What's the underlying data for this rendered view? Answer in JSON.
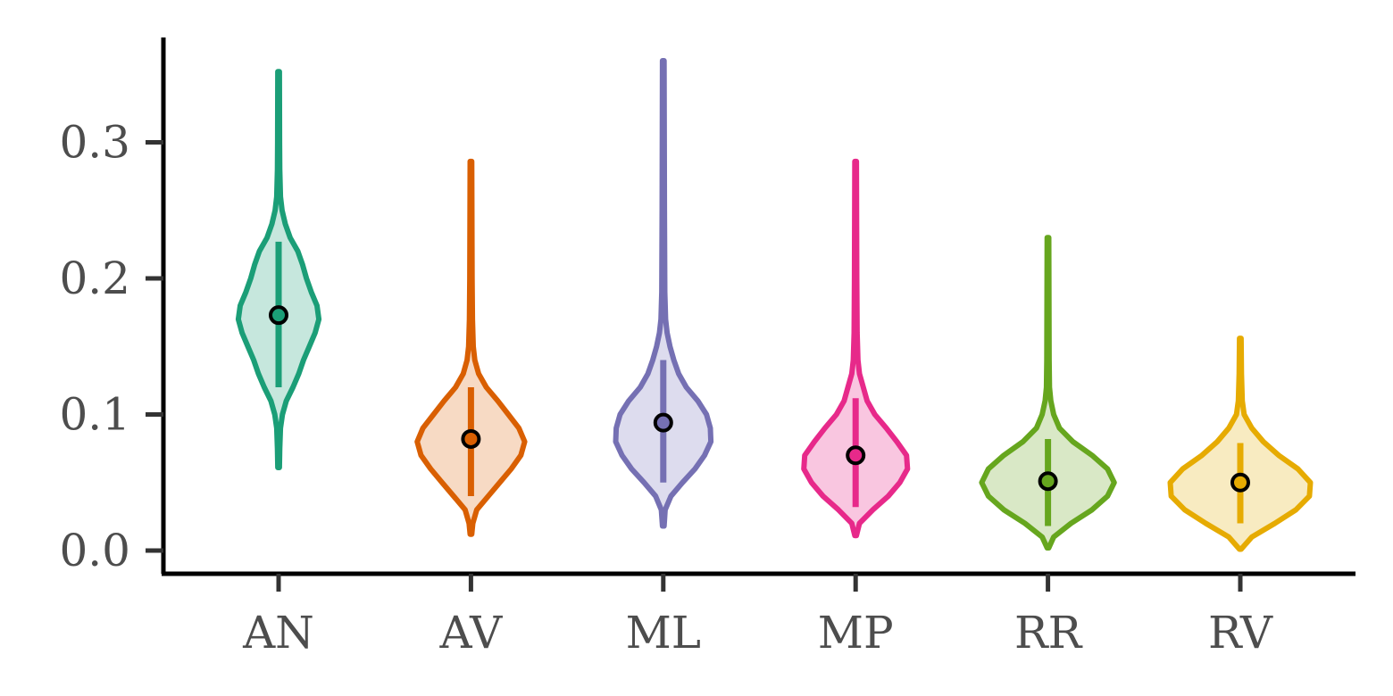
{
  "chart_data": {
    "type": "violin",
    "title": "",
    "xlabel": "",
    "ylabel": "",
    "ylim": [
      -0.015,
      0.375
    ],
    "yticks": [
      0.0,
      0.1,
      0.2,
      0.3
    ],
    "ytick_labels": [
      "0.0",
      "0.1",
      "0.2",
      "0.3"
    ],
    "categories": [
      "AN",
      "AV",
      "ML",
      "MP",
      "RR",
      "RV"
    ],
    "grid": false,
    "legend": "none",
    "series": [
      {
        "category": "AN",
        "color": "#1b9e77",
        "fill": "#c6e7dd",
        "min": 0.061,
        "max": 0.352,
        "median": 0.173,
        "q1": 0.12,
        "q3": 0.227,
        "profile": [
          [
            0.061,
            0.004
          ],
          [
            0.075,
            0.006
          ],
          [
            0.09,
            0.01
          ],
          [
            0.1,
            0.02
          ],
          [
            0.11,
            0.04
          ],
          [
            0.12,
            0.075
          ],
          [
            0.13,
            0.105
          ],
          [
            0.14,
            0.13
          ],
          [
            0.15,
            0.16
          ],
          [
            0.16,
            0.19
          ],
          [
            0.17,
            0.21
          ],
          [
            0.18,
            0.2
          ],
          [
            0.19,
            0.17
          ],
          [
            0.2,
            0.145
          ],
          [
            0.21,
            0.125
          ],
          [
            0.22,
            0.1
          ],
          [
            0.23,
            0.06
          ],
          [
            0.24,
            0.035
          ],
          [
            0.25,
            0.018
          ],
          [
            0.26,
            0.01
          ],
          [
            0.28,
            0.006
          ],
          [
            0.3,
            0.005
          ],
          [
            0.352,
            0.004
          ]
        ]
      },
      {
        "category": "AV",
        "color": "#d95f02",
        "fill": "#f7dac4",
        "min": 0.012,
        "max": 0.286,
        "median": 0.082,
        "q1": 0.04,
        "q3": 0.12,
        "profile": [
          [
            0.012,
            0.004
          ],
          [
            0.02,
            0.01
          ],
          [
            0.03,
            0.03
          ],
          [
            0.04,
            0.09
          ],
          [
            0.05,
            0.15
          ],
          [
            0.06,
            0.21
          ],
          [
            0.07,
            0.26
          ],
          [
            0.08,
            0.28
          ],
          [
            0.09,
            0.25
          ],
          [
            0.1,
            0.195
          ],
          [
            0.11,
            0.14
          ],
          [
            0.12,
            0.08
          ],
          [
            0.13,
            0.04
          ],
          [
            0.14,
            0.02
          ],
          [
            0.15,
            0.012
          ],
          [
            0.17,
            0.008
          ],
          [
            0.2,
            0.006
          ],
          [
            0.286,
            0.004
          ]
        ]
      },
      {
        "category": "ML",
        "color": "#7570b3",
        "fill": "#dddcee",
        "min": 0.018,
        "max": 0.36,
        "median": 0.094,
        "q1": 0.05,
        "q3": 0.14,
        "profile": [
          [
            0.018,
            0.004
          ],
          [
            0.03,
            0.01
          ],
          [
            0.04,
            0.04
          ],
          [
            0.05,
            0.1
          ],
          [
            0.06,
            0.165
          ],
          [
            0.07,
            0.215
          ],
          [
            0.08,
            0.248
          ],
          [
            0.09,
            0.245
          ],
          [
            0.1,
            0.225
          ],
          [
            0.11,
            0.18
          ],
          [
            0.12,
            0.12
          ],
          [
            0.13,
            0.08
          ],
          [
            0.14,
            0.055
          ],
          [
            0.15,
            0.035
          ],
          [
            0.16,
            0.02
          ],
          [
            0.17,
            0.012
          ],
          [
            0.19,
            0.008
          ],
          [
            0.25,
            0.006
          ],
          [
            0.36,
            0.004
          ]
        ]
      },
      {
        "category": "MP",
        "color": "#e7298a",
        "fill": "#f9c6e0",
        "min": 0.011,
        "max": 0.286,
        "median": 0.07,
        "q1": 0.032,
        "q3": 0.112,
        "profile": [
          [
            0.011,
            0.004
          ],
          [
            0.02,
            0.02
          ],
          [
            0.03,
            0.09
          ],
          [
            0.04,
            0.17
          ],
          [
            0.05,
            0.23
          ],
          [
            0.06,
            0.27
          ],
          [
            0.07,
            0.265
          ],
          [
            0.08,
            0.215
          ],
          [
            0.09,
            0.16
          ],
          [
            0.1,
            0.1
          ],
          [
            0.11,
            0.06
          ],
          [
            0.12,
            0.04
          ],
          [
            0.13,
            0.02
          ],
          [
            0.14,
            0.012
          ],
          [
            0.16,
            0.008
          ],
          [
            0.2,
            0.006
          ],
          [
            0.286,
            0.004
          ]
        ]
      },
      {
        "category": "RR",
        "color": "#66a61e",
        "fill": "#d9e8c6",
        "min": 0.002,
        "max": 0.23,
        "median": 0.051,
        "q1": 0.018,
        "q3": 0.082,
        "profile": [
          [
            0.002,
            0.004
          ],
          [
            0.01,
            0.03
          ],
          [
            0.02,
            0.12
          ],
          [
            0.03,
            0.23
          ],
          [
            0.04,
            0.31
          ],
          [
            0.05,
            0.345
          ],
          [
            0.06,
            0.31
          ],
          [
            0.07,
            0.23
          ],
          [
            0.08,
            0.13
          ],
          [
            0.09,
            0.06
          ],
          [
            0.1,
            0.03
          ],
          [
            0.11,
            0.015
          ],
          [
            0.12,
            0.008
          ],
          [
            0.14,
            0.006
          ],
          [
            0.23,
            0.004
          ]
        ]
      },
      {
        "category": "RV",
        "color": "#e6ab02",
        "fill": "#f8ebc1",
        "min": 0.001,
        "max": 0.156,
        "median": 0.05,
        "q1": 0.02,
        "q3": 0.079,
        "profile": [
          [
            0.001,
            0.004
          ],
          [
            0.01,
            0.06
          ],
          [
            0.02,
            0.18
          ],
          [
            0.03,
            0.29
          ],
          [
            0.04,
            0.36
          ],
          [
            0.05,
            0.365
          ],
          [
            0.06,
            0.3
          ],
          [
            0.07,
            0.2
          ],
          [
            0.08,
            0.12
          ],
          [
            0.09,
            0.06
          ],
          [
            0.1,
            0.02
          ],
          [
            0.11,
            0.01
          ],
          [
            0.13,
            0.006
          ],
          [
            0.156,
            0.004
          ]
        ]
      }
    ]
  }
}
